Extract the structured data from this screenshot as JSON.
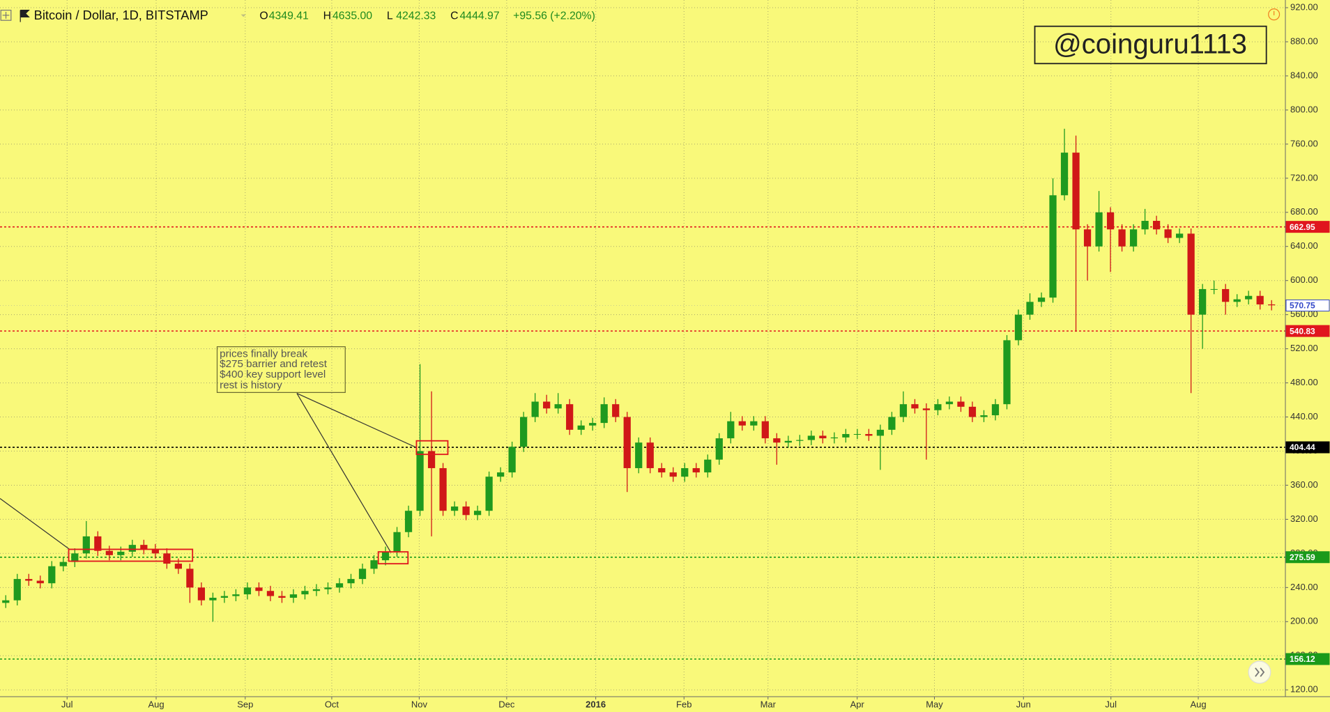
{
  "chart_data": {
    "type": "candlestick",
    "title": "Bitcoin / Dollar, 1D, BITSTAMP",
    "ohlc_readout": [
      {
        "key": "O",
        "value": "4349.41"
      },
      {
        "key": "H",
        "value": "4635.00"
      },
      {
        "key": "L",
        "value": "4242.33"
      },
      {
        "key": "C",
        "value": "4444.97"
      }
    ],
    "change": "+95.56 (+2.20%)",
    "watermark": "@coinguru1113",
    "annotation": [
      "prices finally break",
      "$275 barrier and retest",
      "$400 key support level",
      "rest is history"
    ],
    "up_color": "#1f9a1f",
    "down_color": "#d01818",
    "open": [
      222,
      225,
      250,
      248,
      245,
      265,
      270,
      280,
      300,
      283,
      278,
      282,
      290,
      285,
      280,
      268,
      262,
      240,
      225,
      228,
      230,
      232,
      240,
      236,
      230,
      228,
      232,
      236,
      238,
      240,
      245,
      250,
      262,
      272,
      282,
      305,
      330,
      400,
      380,
      330,
      335,
      325,
      330,
      370,
      375,
      405,
      440,
      458,
      450,
      455,
      425,
      430,
      433,
      455,
      440,
      380,
      410,
      380,
      375,
      370,
      380,
      375,
      390,
      415,
      435,
      430,
      435,
      415,
      410,
      412,
      413,
      418,
      415,
      416,
      420,
      420,
      418,
      425,
      440,
      455,
      450,
      448,
      455,
      458,
      452,
      440,
      442,
      455,
      530,
      560,
      575,
      580,
      700,
      750,
      660,
      640,
      680,
      660,
      640,
      660,
      670,
      660,
      650,
      655,
      560,
      590,
      590,
      575,
      578,
      582,
      572
    ],
    "high": [
      231,
      256,
      256,
      254,
      271,
      276,
      286,
      318,
      306,
      289,
      288,
      296,
      296,
      291,
      286,
      274,
      268,
      246,
      234,
      236,
      238,
      246,
      246,
      242,
      236,
      238,
      242,
      244,
      246,
      251,
      256,
      268,
      278,
      288,
      311,
      336,
      502,
      470,
      386,
      341,
      341,
      336,
      376,
      381,
      411,
      446,
      468,
      466,
      468,
      461,
      436,
      439,
      463,
      461,
      446,
      416,
      416,
      386,
      381,
      386,
      386,
      396,
      421,
      446,
      441,
      441,
      441,
      421,
      418,
      419,
      424,
      424,
      422,
      426,
      426,
      426,
      431,
      446,
      470,
      461,
      456,
      461,
      464,
      464,
      458,
      448,
      461,
      536,
      566,
      585,
      586,
      720,
      778,
      770,
      666,
      705,
      686,
      666,
      666,
      684,
      676,
      666,
      661,
      661,
      596,
      600,
      596,
      584,
      588,
      588,
      577
    ],
    "low": [
      216,
      219,
      242,
      239,
      239,
      259,
      264,
      274,
      277,
      272,
      272,
      276,
      279,
      274,
      262,
      256,
      222,
      219,
      200,
      222,
      224,
      226,
      230,
      224,
      222,
      222,
      226,
      230,
      232,
      234,
      239,
      244,
      256,
      266,
      276,
      299,
      324,
      300,
      324,
      324,
      319,
      319,
      324,
      364,
      369,
      399,
      434,
      444,
      444,
      419,
      419,
      424,
      427,
      434,
      352,
      374,
      374,
      369,
      364,
      364,
      369,
      369,
      384,
      409,
      424,
      424,
      409,
      384,
      404,
      406,
      407,
      409,
      409,
      410,
      414,
      412,
      378,
      419,
      434,
      444,
      390,
      442,
      449,
      446,
      434,
      434,
      436,
      449,
      524,
      554,
      569,
      574,
      694,
      540,
      600,
      634,
      610,
      634,
      634,
      654,
      654,
      644,
      644,
      468,
      520,
      584,
      560,
      569,
      572,
      566,
      565
    ],
    "close": [
      225,
      250,
      248,
      245,
      265,
      270,
      280,
      300,
      283,
      278,
      282,
      290,
      285,
      280,
      268,
      262,
      240,
      225,
      228,
      230,
      232,
      240,
      236,
      230,
      228,
      232,
      236,
      238,
      240,
      245,
      250,
      262,
      272,
      282,
      305,
      330,
      400,
      380,
      330,
      335,
      325,
      330,
      370,
      375,
      405,
      440,
      458,
      450,
      455,
      425,
      430,
      433,
      455,
      440,
      380,
      410,
      380,
      375,
      370,
      380,
      375,
      390,
      415,
      435,
      430,
      435,
      415,
      410,
      412,
      413,
      418,
      415,
      416,
      420,
      420,
      418,
      425,
      440,
      455,
      450,
      448,
      455,
      458,
      452,
      440,
      442,
      455,
      530,
      560,
      575,
      580,
      700,
      750,
      660,
      640,
      680,
      660,
      640,
      660,
      670,
      660,
      650,
      655,
      560,
      590,
      590,
      575,
      578,
      582,
      572,
      571
    ],
    "xlim": [
      -0.5,
      111.2
    ],
    "xticks": [
      {
        "value": 5.33,
        "label": "Jul"
      },
      {
        "value": 13.07,
        "label": "Aug"
      },
      {
        "value": 20.81,
        "label": "Sep"
      },
      {
        "value": 28.33,
        "label": "Oct"
      },
      {
        "value": 35.93,
        "label": "Nov"
      },
      {
        "value": 43.53,
        "label": "Dec"
      },
      {
        "value": 51.27,
        "label": "2016"
      },
      {
        "value": 58.94,
        "label": "Feb"
      },
      {
        "value": 66.24,
        "label": "Mar"
      },
      {
        "value": 73.99,
        "label": "Apr"
      },
      {
        "value": 80.7,
        "label": "May"
      },
      {
        "value": 88.44,
        "label": "Jun"
      },
      {
        "value": 96.04,
        "label": "Jul"
      },
      {
        "value": 103.63,
        "label": "Aug"
      }
    ],
    "ylim": [
      112,
      929
    ],
    "yticks": [
      {
        "value": 120,
        "label": "120.00"
      },
      {
        "value": 160,
        "label": "160.00"
      },
      {
        "value": 200,
        "label": "200.00"
      },
      {
        "value": 240,
        "label": "240.00"
      },
      {
        "value": 280,
        "label": "280.00"
      },
      {
        "value": 320,
        "label": "320.00"
      },
      {
        "value": 360,
        "label": "360.00"
      },
      {
        "value": 400,
        "label": "400.00"
      },
      {
        "value": 440,
        "label": "440.00"
      },
      {
        "value": 480,
        "label": "480.00"
      },
      {
        "value": 520,
        "label": "520.00"
      },
      {
        "value": 560,
        "label": "560.00"
      },
      {
        "value": 600,
        "label": "600.00"
      },
      {
        "value": 640,
        "label": "640.00"
      },
      {
        "value": 680,
        "label": "680.00"
      },
      {
        "value": 720,
        "label": "720.00"
      },
      {
        "value": 760,
        "label": "760.00"
      },
      {
        "value": 800,
        "label": "800.00"
      },
      {
        "value": 840,
        "label": "840.00"
      },
      {
        "value": 880,
        "label": "880.00"
      },
      {
        "value": 920,
        "label": "920.00"
      }
    ],
    "grid": true,
    "levels": [
      {
        "value": 662.95,
        "color": "#e0161e"
      },
      {
        "value": 540.83,
        "color": "#e0161e"
      },
      {
        "value": 404.44,
        "color": "#000000"
      },
      {
        "value": 275.59,
        "color": "#1a9a1a"
      },
      {
        "value": 156.12,
        "color": "#1a9a1a"
      }
    ],
    "last_price": {
      "value": 570.75,
      "color": "#3246c8"
    }
  }
}
